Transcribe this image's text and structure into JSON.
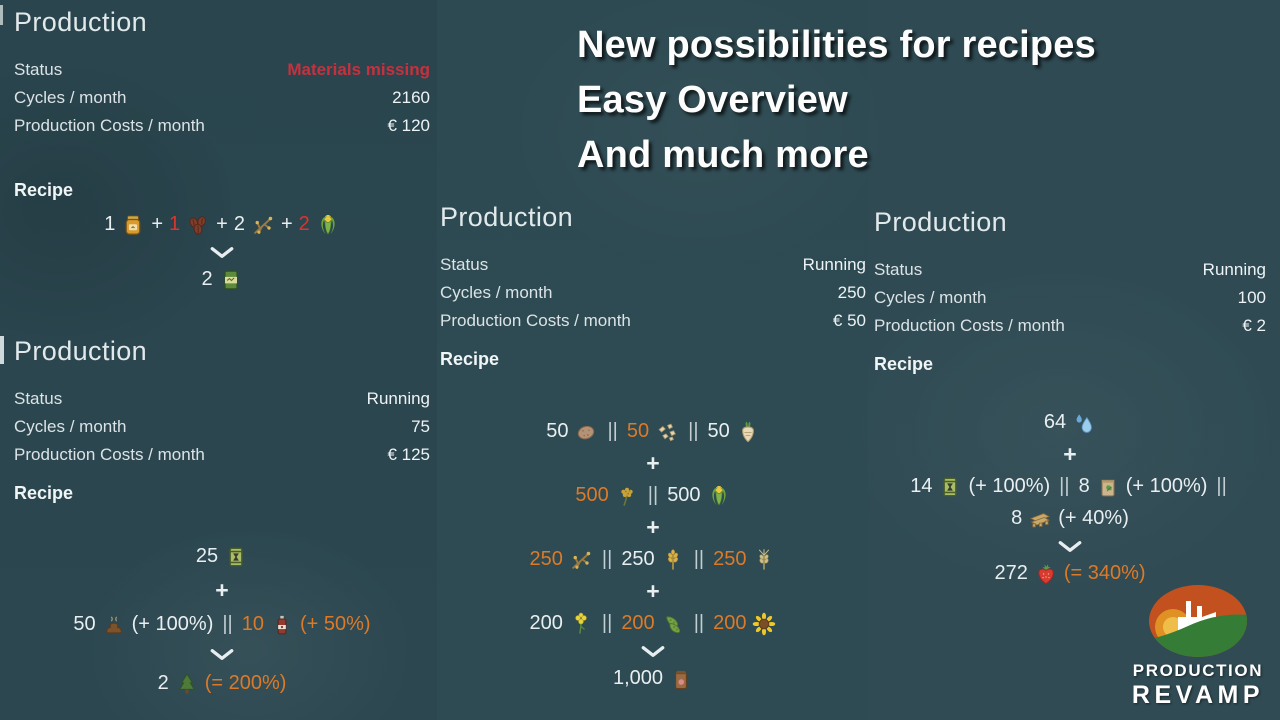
{
  "headline": {
    "lines": [
      "New possibilities for recipes",
      "Easy Overview",
      "And much more"
    ]
  },
  "colors": {
    "background": "#2d4851",
    "text": "#e9eff1",
    "status_red": "#c5313e",
    "recipe_red": "#d8362e",
    "accent_orange": "#dd7a28",
    "logo_orange": "#c2511f",
    "logo_green": "#357d36"
  },
  "logo": {
    "line1": "PRODUCTION",
    "line2": "REVAMP"
  },
  "panels": [
    {
      "title": "Production",
      "stats": [
        {
          "label": "Status",
          "value": "Materials missing",
          "value_color": "red"
        },
        {
          "label": "Cycles / month",
          "value": "2160"
        },
        {
          "label": "Production Costs / month",
          "value": "€ 120"
        }
      ],
      "recipe_label": "Recipe",
      "recipe_lines": [
        {
          "kind": "row",
          "tokens": [
            {
              "t": "1"
            },
            {
              "icon": "honey-jar-icon"
            },
            {
              "t": "+"
            },
            {
              "t": "1",
              "c": "red"
            },
            {
              "icon": "cocoa-beans-icon"
            },
            {
              "t": "+"
            },
            {
              "t": "2"
            },
            {
              "icon": "branches-icon"
            },
            {
              "t": "+"
            },
            {
              "t": "2",
              "c": "red"
            },
            {
              "icon": "corn-icon"
            }
          ]
        },
        {
          "kind": "chevron"
        },
        {
          "kind": "row",
          "tokens": [
            {
              "t": "2"
            },
            {
              "icon": "green-crate-icon"
            }
          ]
        }
      ]
    },
    {
      "title": "Production",
      "stats": [
        {
          "label": "Status",
          "value": "Running"
        },
        {
          "label": "Cycles / month",
          "value": "75"
        },
        {
          "label": "Production Costs / month",
          "value": "€ 125"
        }
      ],
      "recipe_label": "Recipe",
      "recipe_lines": [
        {
          "kind": "row",
          "tokens": [
            {
              "t": "25"
            },
            {
              "icon": "sapling-box-icon"
            }
          ]
        },
        {
          "kind": "row",
          "tokens": [
            {
              "t": "+",
              "c": "plus"
            }
          ]
        },
        {
          "kind": "row",
          "tokens": [
            {
              "t": "50"
            },
            {
              "icon": "manure-icon"
            },
            {
              "t": "(+ 100%)"
            },
            {
              "t": "||",
              "c": "sep"
            },
            {
              "t": "10",
              "c": "orange"
            },
            {
              "icon": "herbicide-bottle-icon"
            },
            {
              "t": "(+ 50%)",
              "c": "orange"
            }
          ]
        },
        {
          "kind": "chevron"
        },
        {
          "kind": "row",
          "tokens": [
            {
              "t": "2"
            },
            {
              "icon": "pine-tree-icon"
            },
            {
              "t": "(= 200%)",
              "c": "orange"
            }
          ]
        }
      ]
    },
    {
      "title": "Production",
      "stats": [
        {
          "label": "Status",
          "value": "Running"
        },
        {
          "label": "Cycles / month",
          "value": "250"
        },
        {
          "label": "Production Costs / month",
          "value": "€ 50"
        }
      ],
      "recipe_label": "Recipe",
      "recipe_lines": [
        {
          "kind": "row",
          "tokens": [
            {
              "t": "50"
            },
            {
              "icon": "potato-icon"
            },
            {
              "t": "||",
              "c": "sep"
            },
            {
              "t": "50",
              "c": "orange"
            },
            {
              "icon": "beet-pieces-icon"
            },
            {
              "t": "||",
              "c": "sep"
            },
            {
              "t": "50"
            },
            {
              "icon": "sugar-beet-icon"
            }
          ]
        },
        {
          "kind": "row",
          "tokens": [
            {
              "t": "+",
              "c": "plus"
            }
          ]
        },
        {
          "kind": "row",
          "tokens": [
            {
              "t": "500",
              "c": "orange"
            },
            {
              "icon": "flower-cluster-icon"
            },
            {
              "t": "||",
              "c": "sep"
            },
            {
              "t": "500"
            },
            {
              "icon": "corn-icon"
            }
          ]
        },
        {
          "kind": "row",
          "tokens": [
            {
              "t": "+",
              "c": "plus"
            }
          ]
        },
        {
          "kind": "row",
          "tokens": [
            {
              "t": "250",
              "c": "orange"
            },
            {
              "icon": "branches-icon"
            },
            {
              "t": "||",
              "c": "sep"
            },
            {
              "t": "250"
            },
            {
              "icon": "wheat-icon"
            },
            {
              "t": "||",
              "c": "sep"
            },
            {
              "t": "250",
              "c": "orange"
            },
            {
              "icon": "barley-icon"
            }
          ]
        },
        {
          "kind": "row",
          "tokens": [
            {
              "t": "+",
              "c": "plus"
            }
          ]
        },
        {
          "kind": "row",
          "tokens": [
            {
              "t": "200"
            },
            {
              "icon": "canola-icon"
            },
            {
              "t": "||",
              "c": "sep"
            },
            {
              "t": "200",
              "c": "orange"
            },
            {
              "icon": "soybean-icon"
            },
            {
              "t": "||",
              "c": "sep"
            },
            {
              "t": "200",
              "c": "orange"
            },
            {
              "icon": "sunflower-icon"
            }
          ]
        },
        {
          "kind": "chevron"
        },
        {
          "kind": "row",
          "tokens": [
            {
              "t": "1,000"
            },
            {
              "icon": "seed-bag-icon"
            }
          ]
        }
      ]
    },
    {
      "title": "Production",
      "stats": [
        {
          "label": "Status",
          "value": "Running"
        },
        {
          "label": "Cycles / month",
          "value": "100"
        },
        {
          "label": "Production Costs / month",
          "value": "€ 2"
        }
      ],
      "recipe_label": "Recipe",
      "recipe_lines": [
        {
          "kind": "row",
          "tokens": [
            {
              "t": "64"
            },
            {
              "icon": "water-drops-icon"
            }
          ]
        },
        {
          "kind": "row",
          "tokens": [
            {
              "t": "+",
              "c": "plus"
            }
          ]
        },
        {
          "kind": "row",
          "tokens": [
            {
              "t": "14"
            },
            {
              "icon": "sapling-box-icon"
            },
            {
              "t": "(+ 100%)"
            },
            {
              "t": "||",
              "c": "sep"
            },
            {
              "t": "8"
            },
            {
              "icon": "fertilizer-bag-icon"
            },
            {
              "t": "(+ 100%)"
            },
            {
              "t": "||",
              "c": "sep"
            }
          ]
        },
        {
          "kind": "row",
          "tokens": [
            {
              "t": "8"
            },
            {
              "icon": "pallet-icon"
            },
            {
              "t": "(+ 40%)"
            }
          ]
        },
        {
          "kind": "chevron"
        },
        {
          "kind": "row",
          "tokens": [
            {
              "t": "272"
            },
            {
              "icon": "strawberry-icon"
            },
            {
              "t": "(= 340%)",
              "c": "orange"
            }
          ]
        }
      ]
    }
  ]
}
